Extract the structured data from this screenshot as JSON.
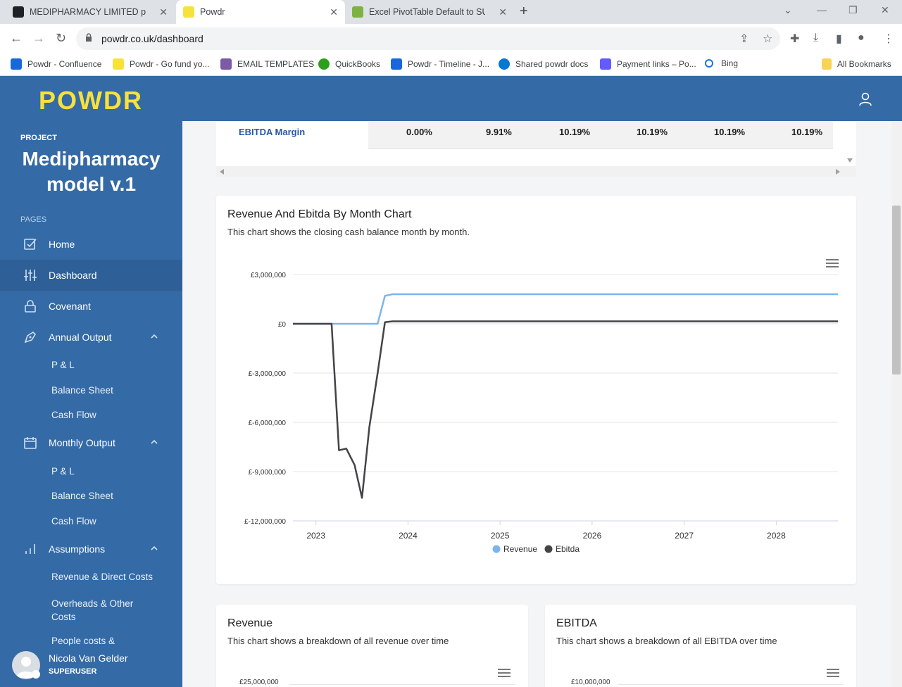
{
  "browser": {
    "tabs": [
      {
        "title": "MEDIPHARMACY LIMITED people",
        "favicon_color": "#202124"
      },
      {
        "title": "Powdr",
        "favicon_color": "#f7e23c"
      },
      {
        "title": "Excel PivotTable Default to SUM",
        "favicon_color": "#7cb342"
      }
    ],
    "url": "powdr.co.uk/dashboard",
    "bookmarks": [
      {
        "label": "Powdr - Confluence",
        "color": "#1868db"
      },
      {
        "label": "Powdr - Go fund yo...",
        "color": "#f7e23c"
      },
      {
        "label": "EMAIL TEMPLATES",
        "color": "#7b5aa6"
      },
      {
        "label": "QuickBooks",
        "color": "#2ca01c"
      },
      {
        "label": "Powdr - Timeline - J...",
        "color": "#1868db"
      },
      {
        "label": "Shared powdr docs",
        "color": "#0078d4"
      },
      {
        "label": "Payment links – Po...",
        "color": "#635bff"
      },
      {
        "label": "Bing",
        "color": "#1a73e8"
      },
      {
        "label": "All Bookmarks",
        "color": "#f7d358"
      }
    ]
  },
  "app": {
    "logo": "POWDR",
    "brand_color": "#346aa6",
    "logo_color": "#f7e23c"
  },
  "sidebar": {
    "project_label": "PROJECT",
    "project_name": "Medipharmacy model v.1",
    "pages_label": "PAGES",
    "items": [
      {
        "label": "Home",
        "icon": "checkbox-icon"
      },
      {
        "label": "Dashboard",
        "icon": "sliders-icon"
      },
      {
        "label": "Covenant",
        "icon": "lock-icon"
      },
      {
        "label": "Annual Output",
        "icon": "pen-icon"
      },
      {
        "label": "Monthly Output",
        "icon": "calendar-icon"
      },
      {
        "label": "Assumptions",
        "icon": "bar-chart-icon"
      }
    ],
    "annual_sub": [
      "P & L",
      "Balance Sheet",
      "Cash Flow"
    ],
    "monthly_sub": [
      "P & L",
      "Balance Sheet",
      "Cash Flow"
    ],
    "assumption_sub": [
      "Revenue & Direct Costs",
      "Overheads & Other Costs",
      "People costs &"
    ],
    "user": {
      "name": "Nicola Van Gelder",
      "role": "SUPERUSER"
    }
  },
  "table": {
    "row_label": "EBITDA Margin",
    "values": [
      "0.00%",
      "9.91%",
      "10.19%",
      "10.19%",
      "10.19%",
      "10.19%"
    ]
  },
  "main_chart": {
    "title": "Revenue And Ebitda By Month Chart",
    "subtitle": "This chart shows the closing cash balance month by month."
  },
  "revenue_card": {
    "title": "Revenue",
    "subtitle": "This chart shows a breakdown of all revenue over time",
    "top_tick": "£25,000,000"
  },
  "ebitda_card": {
    "title": "EBITDA",
    "subtitle": "This chart shows a breakdown of all EBITDA over time",
    "top_tick": "£10,000,000"
  },
  "chart_data": {
    "type": "line",
    "ylim": [
      -12000000,
      3000000
    ],
    "yticks": [
      3000000,
      0,
      -3000000,
      -6000000,
      -9000000,
      -12000000
    ],
    "ytick_labels": [
      "£3,000,000",
      "£0",
      "£-3,000,000",
      "£-6,000,000",
      "£-9,000,000",
      "£-12,000,000"
    ],
    "xlim": [
      2022.75,
      2028.67
    ],
    "xticks": [
      2023,
      2024,
      2025,
      2026,
      2027,
      2028
    ],
    "xtick_labels": [
      "2023",
      "2024",
      "2025",
      "2026",
      "2027",
      "2028"
    ],
    "legend_position": "bottom",
    "series": [
      {
        "name": "Revenue",
        "color": "#7cb5ec",
        "points": [
          [
            2022.75,
            0
          ],
          [
            2023.17,
            0
          ],
          [
            2023.67,
            0
          ],
          [
            2023.75,
            1700000
          ],
          [
            2023.83,
            1800000
          ],
          [
            2028.67,
            1800000
          ]
        ]
      },
      {
        "name": "Ebitda",
        "color": "#434348",
        "points": [
          [
            2022.75,
            0
          ],
          [
            2023.17,
            0
          ],
          [
            2023.25,
            -7700000
          ],
          [
            2023.33,
            -7600000
          ],
          [
            2023.42,
            -8600000
          ],
          [
            2023.5,
            -10600000
          ],
          [
            2023.58,
            -6300000
          ],
          [
            2023.67,
            -3000000
          ],
          [
            2023.75,
            100000
          ],
          [
            2023.83,
            150000
          ],
          [
            2028.67,
            150000
          ]
        ]
      }
    ]
  }
}
